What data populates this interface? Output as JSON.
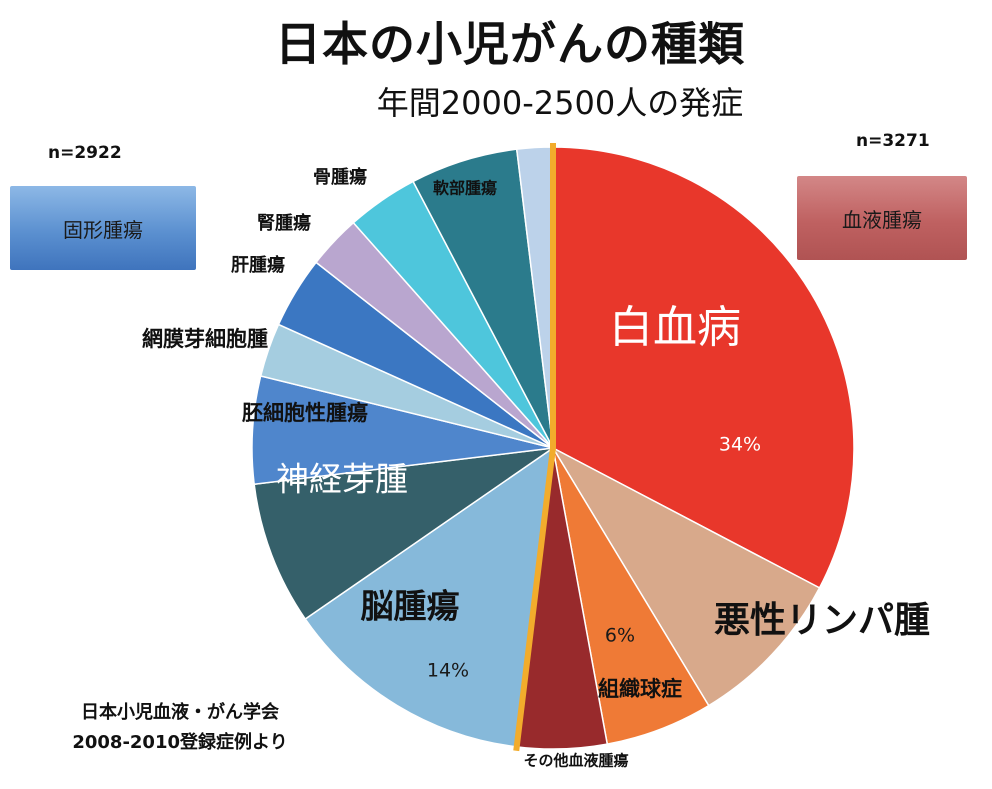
{
  "title": "日本の小児がんの種類",
  "subtitle": "年間2000-2500人の発症",
  "groups": {
    "solid": {
      "label": "固形腫瘍",
      "n": "n=2922",
      "color": "#5b90d0"
    },
    "blood": {
      "label": "血液腫瘍",
      "n": "n=3271",
      "color": "#bf6161"
    }
  },
  "source": {
    "line1": "日本小児血液・がん学会",
    "line2": "2008-2010登録症例より"
  },
  "chart_data": {
    "type": "pie",
    "start": "12 o'clock, clockwise",
    "slices": [
      {
        "label": "白血病",
        "value": 34,
        "value_label": "34%",
        "color": "#e8372b"
      },
      {
        "label": "悪性リンパ腫",
        "value": 9,
        "color": "#d8a98b"
      },
      {
        "label": "組織球症",
        "value": 6,
        "value_label": "6%",
        "color": "#ef7a36"
      },
      {
        "label": "その他血液腫瘍",
        "value": 5,
        "color": "#982a2c"
      },
      {
        "label": "脳腫瘍",
        "value": 14,
        "value_label": "14%",
        "color": "#86b9da"
      },
      {
        "label": "神経芽腫",
        "value": 8,
        "color": "#35606a"
      },
      {
        "label": "胚細胞性腫瘍",
        "value": 6,
        "color": "#4f86cc"
      },
      {
        "label": "網膜芽細胞腫",
        "value": 3,
        "color": "#a5cde0"
      },
      {
        "label": "肝腫瘍",
        "value": 4,
        "color": "#3b77c2"
      },
      {
        "label": "腎腫瘍",
        "value": 3,
        "color": "#b9a6cf"
      },
      {
        "label": "骨腫瘍",
        "value": 4,
        "color": "#4ec6dc"
      },
      {
        "label": "軟部腫瘍",
        "value": 6,
        "color": "#2b7b8c"
      },
      {
        "label": "",
        "value": 2,
        "color": "#bcd2ea"
      }
    ]
  }
}
